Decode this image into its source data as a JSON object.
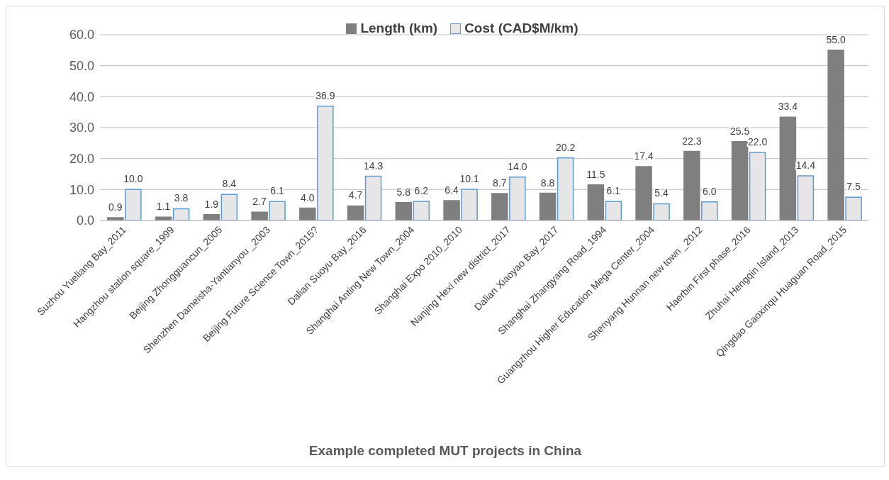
{
  "chart_data": {
    "type": "bar",
    "title": "Example completed MUT projects in China",
    "categories": [
      "Suzhou Yueliang Bay_2011",
      "Hangzhou station square_1999",
      "Beijing Zhongguancun_2005",
      "Shenzhen Dameisha-Yantianyou _2003",
      "Beijing Future Science Town_2015?",
      "Dalian Suoyu Bay_2016",
      "Shanghai Anting New Town_2004",
      "Shanghai Expo 2010_2010",
      "Nanjing Hexi new district_2017",
      "Dalian Xiaoyao Bay_2017",
      "Shanghai Zhangyang Road_1994",
      "Guangzhou Higher Education Mega Center_2004",
      "Shenyang Hunnan new town _2012",
      "Haerbin First phase_2016",
      "Zhuhai Hengqin Island_2013",
      "Qingdao Gaoxinqu Huaguan Road_2015"
    ],
    "series": [
      {
        "name": "Length (km)",
        "color": "#7f7f7f",
        "values": [
          0.9,
          1.1,
          1.9,
          2.7,
          4.0,
          4.7,
          5.8,
          6.4,
          8.7,
          8.8,
          11.5,
          17.4,
          22.3,
          25.5,
          33.4,
          55.0
        ],
        "value_labels": [
          "0.9",
          "1.1",
          "1.9",
          "2.7",
          "4.0",
          "4.7",
          "5.8",
          "6.4",
          "8.7",
          "8.8",
          "11.5",
          "17.4",
          "22.3",
          "25.5",
          "33.4",
          "55.0"
        ]
      },
      {
        "name": "Cost (CAD$M/km)",
        "color": "#e7e6e6",
        "values": [
          10.0,
          3.8,
          8.4,
          6.1,
          36.9,
          14.3,
          6.2,
          10.1,
          14.0,
          20.2,
          6.1,
          5.4,
          6.0,
          22.0,
          14.4,
          7.5
        ],
        "value_labels": [
          "10.0",
          "3.8",
          "8.4",
          "6.1",
          "36.9",
          "14.3",
          "6.2",
          "10.1",
          "14.0",
          "20.2",
          "6.1",
          "5.4",
          "6.0",
          "22.0",
          "14.4",
          "7.5"
        ]
      }
    ],
    "ylim": [
      0,
      60
    ],
    "yticks": [
      {
        "value": 0,
        "label": "0.0"
      },
      {
        "value": 10,
        "label": "10.0"
      },
      {
        "value": 20,
        "label": "20.0"
      },
      {
        "value": 30,
        "label": "30.0"
      },
      {
        "value": 40,
        "label": "40.0"
      },
      {
        "value": 50,
        "label": "50.0"
      },
      {
        "value": 60,
        "label": "60.0"
      }
    ],
    "grid": "y",
    "legend": "top"
  }
}
